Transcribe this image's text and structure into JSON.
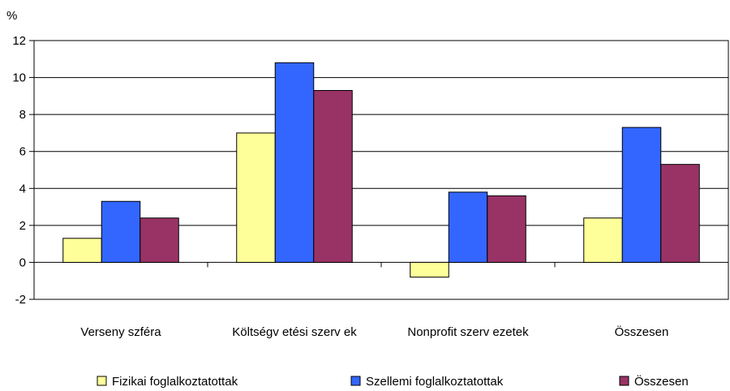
{
  "chart_data": {
    "type": "bar",
    "unit_label": "%",
    "categories": [
      "Versenyszféra",
      "Költségvetési szervek",
      "Nonprofit szervezetek",
      "Összesen"
    ],
    "category_labels_display": [
      "Verseny szféra",
      "Költségv etési szerv ek",
      "Nonprofit szerv ezetek",
      "Összesen"
    ],
    "series": [
      {
        "name": "Fizikai foglalkoztatottak",
        "color": "#ffff99",
        "values": [
          1.3,
          7.0,
          -0.8,
          2.4
        ]
      },
      {
        "name": "Szellemi foglalkoztatottak",
        "color": "#3366ff",
        "values": [
          3.3,
          10.8,
          3.8,
          7.3
        ]
      },
      {
        "name": "Összesen",
        "color": "#993366",
        "values": [
          2.4,
          9.3,
          3.6,
          5.3
        ]
      }
    ],
    "ylim": [
      -2,
      12
    ],
    "yticks": [
      "12",
      "10",
      "8",
      "6",
      "4",
      "2",
      "0",
      "-2"
    ],
    "grid": true,
    "legend_position": "bottom"
  }
}
